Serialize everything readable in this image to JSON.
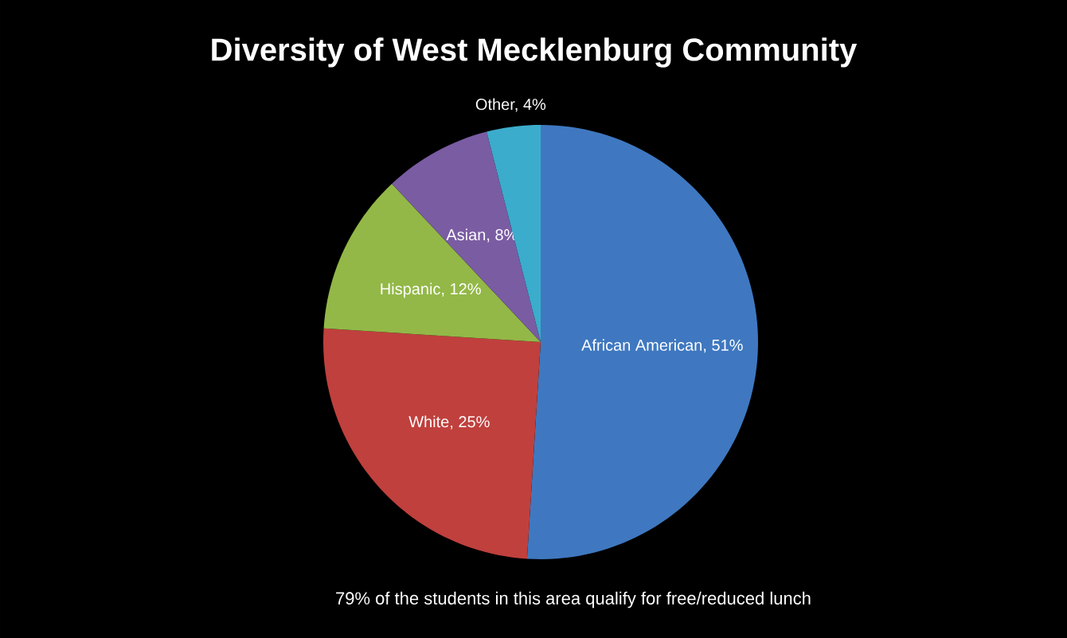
{
  "chart_data": {
    "type": "pie",
    "title": "Diversity of West Mecklenburg Community",
    "categories": [
      "African American, 51%",
      "White, 25%",
      "Hispanic, 12%",
      "Asian, 8%",
      "Other, 4%"
    ],
    "values": [
      51,
      25,
      12,
      8,
      4
    ],
    "colors": [
      "#3f78c0",
      "#c0403d",
      "#93b847",
      "#7a5ca3",
      "#3caccc"
    ],
    "annotations": [
      "79% of the students in this area qualify for free/reduced lunch"
    ]
  }
}
